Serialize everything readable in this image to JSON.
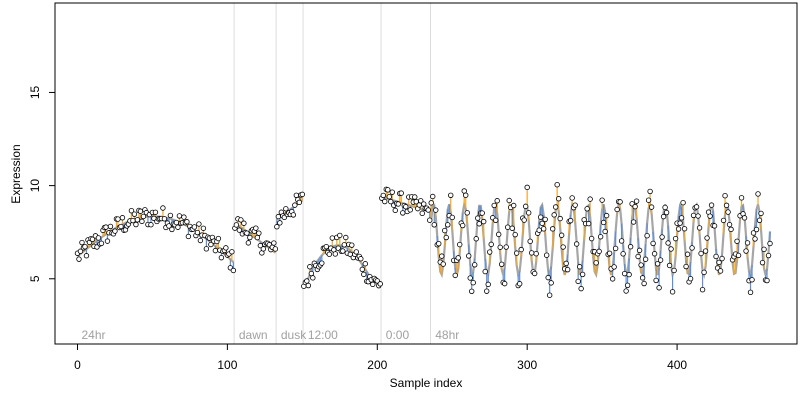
{
  "chart_data": {
    "type": "scatter",
    "xlabel": "Sample index",
    "ylabel": "Expression",
    "xlim": [
      -15,
      480
    ],
    "ylim": [
      1.5,
      19.8
    ],
    "xticks": [
      0,
      100,
      200,
      300,
      400
    ],
    "yticks": [
      5,
      10,
      15
    ],
    "grid": false,
    "colors": {
      "fitted_line": "#a6a6a6",
      "residual_positive": "#f5a623",
      "residual_negative": "#5b8fd9",
      "point_fill": "#ffffff",
      "point_stroke": "#000000",
      "separator": "#dddddd",
      "region_label": "#a0a0a0"
    },
    "regions": [
      {
        "label": "24hr",
        "x_start": 0,
        "x_end": 104,
        "type": "trend",
        "base": 6.2,
        "amp": 2.3
      },
      {
        "label": "dawn",
        "x_start": 105,
        "x_end": 132,
        "type": "linear",
        "from": 8.0,
        "to": 6.4
      },
      {
        "label": "dusk",
        "x_start": 133,
        "x_end": 150,
        "type": "linear",
        "from": 8.2,
        "to": 9.2
      },
      {
        "label": "12:00",
        "x_start": 151,
        "x_end": 202,
        "type": "bump",
        "base": 4.8,
        "amp": 2.0
      },
      {
        "label": "0:00",
        "x_start": 203,
        "x_end": 235,
        "type": "linear",
        "from": 9.4,
        "to": 8.6
      },
      {
        "label": "48hr",
        "x_start": 236,
        "x_end": 462,
        "type": "oscillation",
        "center": 7.1,
        "amp": 1.9,
        "period": 10.3
      }
    ],
    "separators_x": [
      104.5,
      132.5,
      150.5,
      202.5,
      235.5
    ],
    "n_points": 463
  }
}
